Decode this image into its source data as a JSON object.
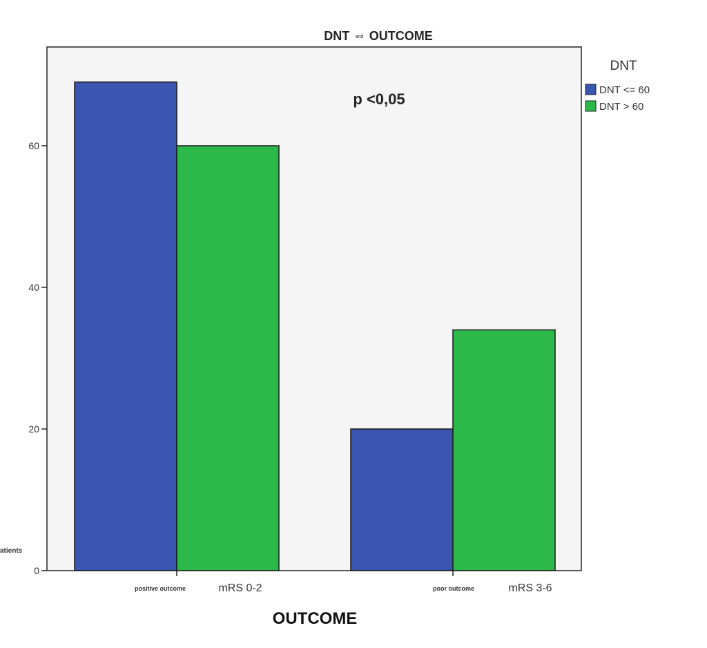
{
  "chart_data": {
    "type": "bar",
    "title": {
      "left": "DNT",
      "middle": "and",
      "right": "OUTCOME"
    },
    "categories": [
      {
        "label": "positive outcome",
        "range": "mRS 0-2"
      },
      {
        "label": "poor outcome",
        "range": "mRS 3-6"
      }
    ],
    "series": [
      {
        "name": "DNT <= 60",
        "color": "#3a56b0",
        "values": [
          69,
          20
        ]
      },
      {
        "name": "DNT > 60",
        "color": "#2db84a",
        "values": [
          60,
          34
        ]
      }
    ],
    "xlabel": "OUTCOME",
    "ylabel": "atients",
    "ylim": [
      0,
      74
    ],
    "yticks": [
      0,
      20,
      40,
      60
    ],
    "legend": {
      "title": "DNT",
      "position": "right"
    },
    "annotation": "p <0,05",
    "plot_background": "#f5f5f5",
    "grid": false
  }
}
